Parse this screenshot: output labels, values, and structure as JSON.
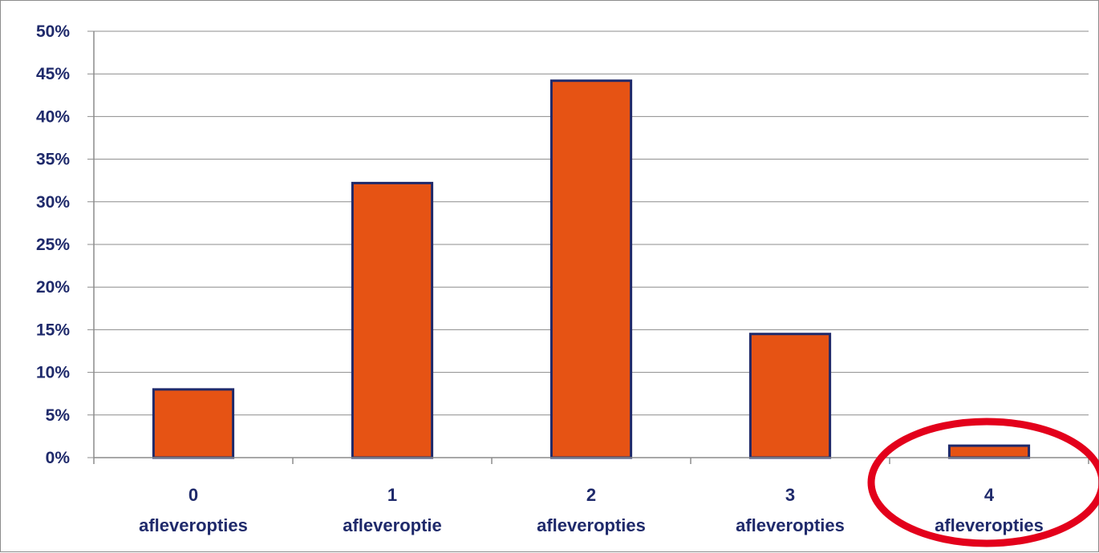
{
  "chart_data": {
    "type": "bar",
    "categories": [
      [
        "0",
        "afleveropties"
      ],
      [
        "1",
        "afleveroptie"
      ],
      [
        "2",
        "afleveropties"
      ],
      [
        "3",
        "afleveropties"
      ],
      [
        "4",
        "afleveropties"
      ]
    ],
    "values": [
      8.0,
      32.2,
      44.2,
      14.5,
      1.4
    ],
    "ylim": [
      0,
      50
    ],
    "yticks": [
      0,
      5,
      10,
      15,
      20,
      25,
      30,
      35,
      40,
      45,
      50
    ],
    "ytick_labels": [
      "0%",
      "5%",
      "10%",
      "15%",
      "20%",
      "25%",
      "30%",
      "35%",
      "40%",
      "45%",
      "50%"
    ],
    "grid": true,
    "highlight_index": 4,
    "colors": {
      "bar_fill": "#e65314",
      "bar_stroke": "#1f2a6b",
      "grid": "#8c8c8c",
      "label": "#1f2a6b",
      "highlight_ring": "#e3001b"
    }
  }
}
